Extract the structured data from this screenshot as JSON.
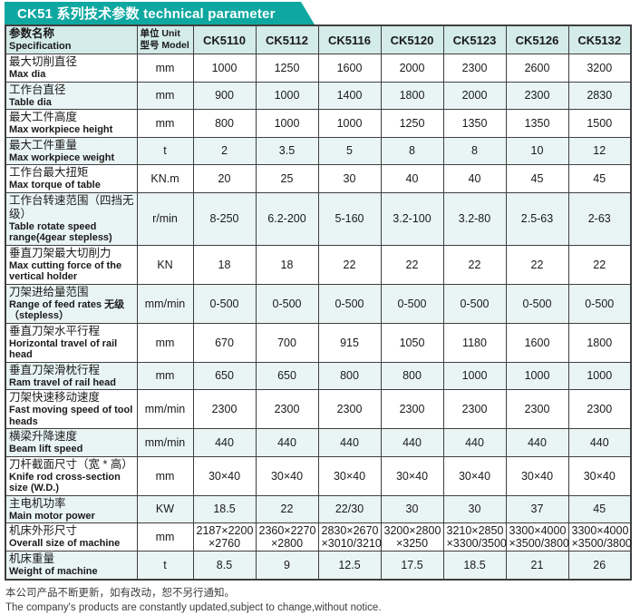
{
  "title": "CK51 系列技术参数 technical parameter",
  "colors": {
    "accent_teal": "#0fa8a1",
    "header_bg": "#d3ebe9",
    "alt_row_bg": "#e9f5f4",
    "border": "#3f3f3f",
    "title_text": "#ffffff"
  },
  "table": {
    "spec_header_zh": "参数名称",
    "spec_header_en": "Specification",
    "unit_header_line1": "单位 Unit",
    "unit_header_line2": "型号 Model",
    "models": [
      "CK5110",
      "CK5112",
      "CK5116",
      "CK5120",
      "CK5123",
      "CK5126",
      "CK5132"
    ],
    "rows": [
      {
        "zh": "最大切削直径",
        "en": "Max dia",
        "unit": "mm",
        "values": [
          "1000",
          "1250",
          "1600",
          "2000",
          "2300",
          "2600",
          "3200"
        ]
      },
      {
        "zh": "工作台直径",
        "en": "Table dia",
        "unit": "mm",
        "values": [
          "900",
          "1000",
          "1400",
          "1800",
          "2000",
          "2300",
          "2830"
        ]
      },
      {
        "zh": "最大工件高度",
        "en": "Max workpiece height",
        "unit": "mm",
        "values": [
          "800",
          "1000",
          "1000",
          "1250",
          "1350",
          "1350",
          "1500"
        ]
      },
      {
        "zh": "最大工件重量",
        "en": "Max workpiece weight",
        "unit": "t",
        "values": [
          "2",
          "3.5",
          "5",
          "8",
          "8",
          "10",
          "12"
        ]
      },
      {
        "zh": "工作台最大扭矩",
        "en": "Max torque of table",
        "unit": "KN.m",
        "values": [
          "20",
          "25",
          "30",
          "40",
          "40",
          "45",
          "45"
        ]
      },
      {
        "zh": "工作台转速范围（四挡无级）",
        "en": "Table rotate speed range(4gear stepless)",
        "unit": "r/min",
        "values": [
          "8-250",
          "6.2-200",
          "5-160",
          "3.2-100",
          "3.2-80",
          "2.5-63",
          "2-63"
        ]
      },
      {
        "zh": "垂直刀架最大切削力",
        "en": "Max cutting force of the vertical holder",
        "unit": "KN",
        "values": [
          "18",
          "18",
          "22",
          "22",
          "22",
          "22",
          "22"
        ]
      },
      {
        "zh": "刀架进给量范围",
        "en": "Range of feed rates 无级\n（stepless）",
        "unit": "mm/min",
        "values": [
          "0-500",
          "0-500",
          "0-500",
          "0-500",
          "0-500",
          "0-500",
          "0-500"
        ]
      },
      {
        "zh": "垂直刀架水平行程",
        "en": "Horizontal travel of rail head",
        "unit": "mm",
        "values": [
          "670",
          "700",
          "915",
          "1050",
          "1180",
          "1600",
          "1800"
        ]
      },
      {
        "zh": "垂直刀架滑枕行程",
        "en": "Ram travel of rail head",
        "unit": "mm",
        "values": [
          "650",
          "650",
          "800",
          "800",
          "1000",
          "1000",
          "1000"
        ]
      },
      {
        "zh": "刀架快速移动速度",
        "en": "Fast moving speed of tool heads",
        "unit": "mm/min",
        "values": [
          "2300",
          "2300",
          "2300",
          "2300",
          "2300",
          "2300",
          "2300"
        ]
      },
      {
        "zh": "横梁升降速度",
        "en": "Beam lift speed",
        "unit": "mm/min",
        "values": [
          "440",
          "440",
          "440",
          "440",
          "440",
          "440",
          "440"
        ]
      },
      {
        "zh": "刀杆截面尺寸（宽 * 高）",
        "en": "Knife rod cross-section size (W.D.)",
        "unit": "mm",
        "values": [
          "30×40",
          "30×40",
          "30×40",
          "30×40",
          "30×40",
          "30×40",
          "30×40"
        ]
      },
      {
        "zh": "主电机功率",
        "en": "Main motor power",
        "unit": "KW",
        "values": [
          "18.5",
          "22",
          "22/30",
          "30",
          "30",
          "37",
          "45"
        ]
      },
      {
        "zh": "机床外形尺寸",
        "en": "Overall size of machine",
        "unit": "mm",
        "values": [
          "2187×2200\n×2760",
          "2360×2270\n×2800",
          "2830×2670\n×3010/3210",
          "3200×2800\n×3250",
          "3210×2850\n×3300/3500",
          "3300×4000\n×3500/3800",
          "3300×4000\n×3500/3800"
        ]
      },
      {
        "zh": "机床重量",
        "en": "Weight of machine",
        "unit": "t",
        "values": [
          "8.5",
          "9",
          "12.5",
          "17.5",
          "18.5",
          "21",
          "26"
        ]
      }
    ]
  },
  "footer": {
    "zh": "本公司产品不断更新，如有改动，恕不另行通知。",
    "en": "The company's products are constantly updated,subject to change,without notice."
  }
}
